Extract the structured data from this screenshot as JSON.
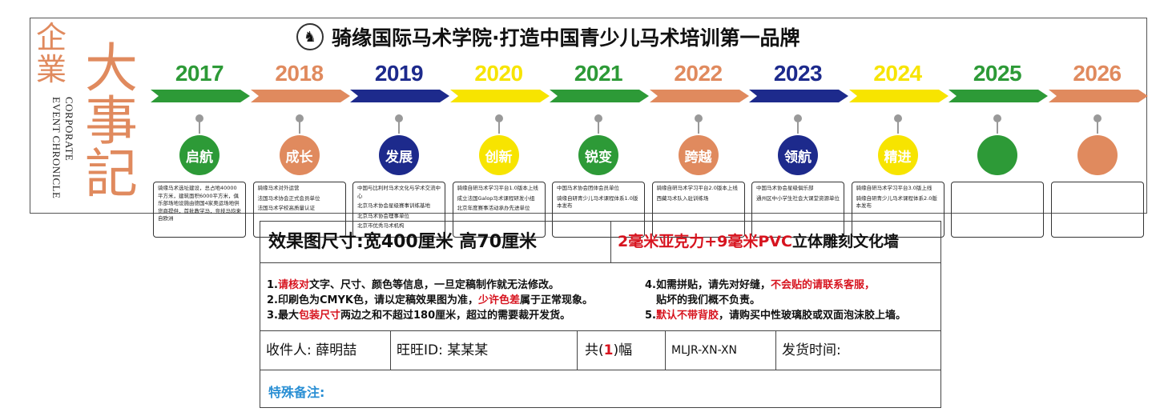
{
  "banner": {
    "qiye": "企業",
    "dashi": "大事記",
    "english_lines": [
      "CORPORATE",
      "EVENT CHRONICLE"
    ],
    "title": "骑缘国际马术学院·打造中国青少儿马术培训第一品牌",
    "logo_icon": "horse-emblem-icon"
  },
  "timeline": [
    {
      "year": "2017",
      "stage": "启航",
      "color": "#2d9a37",
      "events": [
        "骑缘马术选址建设，总占地40000平方米，建筑面积6000平方米，俱乐部场地设施由德国4家奥运场地供货商提供，首批教学马，竞技马均来自欧洲"
      ]
    },
    {
      "year": "2018",
      "stage": "成长",
      "color": "#e08a5e",
      "events": [
        "骑缘马术对外运营",
        "法国马术协会正式会员单位",
        "法国马术学校高质量认证"
      ]
    },
    {
      "year": "2019",
      "stage": "发展",
      "color": "#1d2a8c",
      "events": [
        "中国与比利时马术文化与学术交流中心",
        "北京马术协会星级赛事训练基地",
        "北京马术协会理事单位",
        "北京市优秀马术机构"
      ]
    },
    {
      "year": "2020",
      "stage": "创新",
      "color": "#f7e400",
      "events": [
        "骑缘自研马术学习平台1.0版本上线",
        "成立法国Galop马术课程研发小组",
        "北京年度赛事活动承办先进单位"
      ]
    },
    {
      "year": "2021",
      "stage": "锐变",
      "color": "#2d9a37",
      "events": [
        "中国马术协会团体会员单位",
        "骑缘自研青少儿马术课程体系1.0版本发布"
      ]
    },
    {
      "year": "2022",
      "stage": "跨越",
      "color": "#e08a5e",
      "events": [
        "骑缘自研马术学习平台2.0版本上线",
        "西藏马术队入驻训练场"
      ]
    },
    {
      "year": "2023",
      "stage": "领航",
      "color": "#1d2a8c",
      "events": [
        "中国马术协会星级俱乐部",
        "通州区中小学生社会大课堂资源单位"
      ]
    },
    {
      "year": "2024",
      "stage": "精进",
      "color": "#f7e400",
      "events": [
        "骑缘自研马术学习平台3.0版上线",
        "骑缘自研青少儿马术课程体系2.0版本发布"
      ]
    },
    {
      "year": "2025",
      "stage": "",
      "color": "#2d9a37",
      "events": []
    },
    {
      "year": "2026",
      "stage": "",
      "color": "#e08a5e",
      "events": []
    }
  ],
  "spec": {
    "size_label": "效果图尺寸:",
    "size_value": "宽400厘米  高70厘米",
    "material_red": "2毫米亚克力+9毫米PVC",
    "material_black": "立体雕刻文化墙",
    "notes": {
      "n1_a": "1.",
      "n1_red": "请核对",
      "n1_b": "文字、尺寸、颜色等信息，一旦定稿制作就无法修改。",
      "n2_a": "2.印刷色为CMYK色，请以定稿效果图为准，",
      "n2_red": "少许色差",
      "n2_b": "属于正常现象。",
      "n3_a": "3.最大",
      "n3_red": "包装尺寸",
      "n3_b": "两边之和不超过180厘米，超过的需要裁开发货。",
      "n4_a": "4.如需拼贴，请先对好缝，",
      "n4_red": "不会贴的请联系客服，",
      "n4_c": "贴坏的我们概不负责。",
      "n5_a": "5.",
      "n5_red": "默认不带背胶",
      "n5_b": "，请购买中性玻璃胶或双面泡沫胶上墙。"
    },
    "receiver_label": "收件人:",
    "receiver_value": "薛明喆",
    "wangwang_label": "旺旺ID:",
    "wangwang_value": "某某某",
    "count_prefix": "共(",
    "count_value": "1",
    "count_suffix": ")幅",
    "code": "MLJR-XN-XN",
    "ship_time_label": "发货时间:",
    "remark_label": "特殊备注:"
  }
}
